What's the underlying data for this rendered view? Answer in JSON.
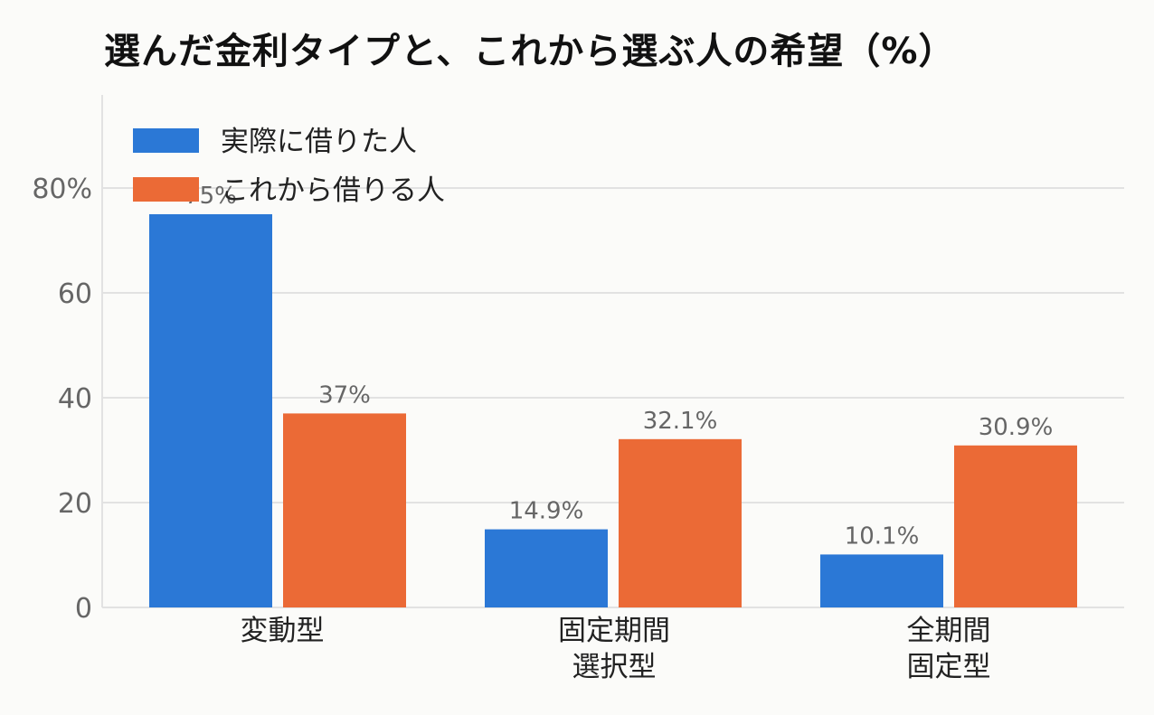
{
  "chart_data": {
    "type": "bar",
    "title": "選んだ金利タイプと、これから選ぶ人の希望（%）",
    "categories": [
      [
        "変動型"
      ],
      [
        "固定期間",
        "選択型"
      ],
      [
        "全期間",
        "固定型"
      ]
    ],
    "series": [
      {
        "name": "実際に借りた人",
        "values": [
          75,
          14.9,
          10.1
        ],
        "labels": [
          "75%",
          "14.9%",
          "10.1%"
        ],
        "color": "#2b78d6"
      },
      {
        "name": "これから借りる人",
        "values": [
          37,
          32.1,
          30.9
        ],
        "labels": [
          "37%",
          "32.1%",
          "30.9%"
        ],
        "color": "#eb6a36"
      }
    ],
    "yticks": [
      {
        "value": 0,
        "label": "0"
      },
      {
        "value": 20,
        "label": "20"
      },
      {
        "value": 40,
        "label": "40"
      },
      {
        "value": 60,
        "label": "60"
      },
      {
        "value": 80,
        "label": "80%"
      }
    ],
    "ylim": [
      0,
      80
    ],
    "grid": true,
    "legend": "top-left"
  },
  "colors": {
    "grid": "#e2e2e2",
    "axis_text": "#666666",
    "background": "#fbfbf9"
  }
}
